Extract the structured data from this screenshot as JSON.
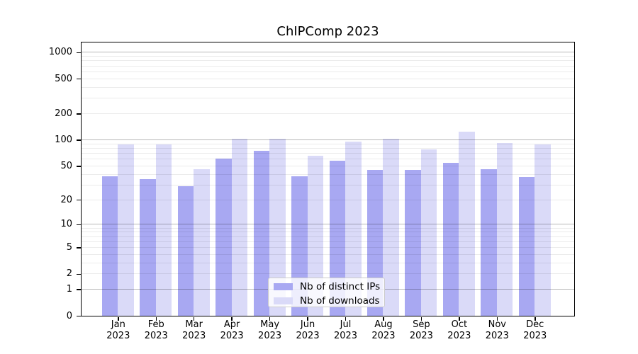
{
  "title": "ChIPComp 2023",
  "legend": {
    "items": [
      {
        "label": "Nb of distinct IPs",
        "color": "#a8a8f2"
      },
      {
        "label": "Nb of downloads",
        "color": "#dadaf8"
      }
    ]
  },
  "chart_data": {
    "type": "bar",
    "title": "ChIPComp 2023",
    "scale": "log1p (log-like axis with 0 baseline)",
    "categories": [
      "Jan 2023",
      "Feb 2023",
      "Mar 2023",
      "Apr 2023",
      "May 2023",
      "Jun 2023",
      "Jul 2023",
      "Aug 2023",
      "Sep 2023",
      "Oct 2023",
      "Nov 2023",
      "Dec 2023"
    ],
    "series": [
      {
        "name": "Nb of distinct IPs",
        "color": "#a8a8f2",
        "values": [
          38,
          35,
          29,
          61,
          75,
          38,
          57,
          45,
          45,
          54,
          46,
          37
        ]
      },
      {
        "name": "Nb of downloads",
        "color": "#dadaf8",
        "values": [
          89,
          88,
          46,
          103,
          103,
          66,
          96,
          102,
          77,
          123,
          92,
          88
        ]
      }
    ],
    "yticks": [
      0,
      1,
      2,
      5,
      10,
      20,
      50,
      100,
      200,
      500,
      1000
    ],
    "minor_gridlines": [
      2,
      3,
      4,
      5,
      6,
      7,
      8,
      9,
      20,
      30,
      40,
      50,
      60,
      70,
      80,
      90,
      200,
      300,
      400,
      500,
      600,
      700,
      800,
      900
    ],
    "major_gridlines": [
      1,
      10,
      100,
      1000
    ],
    "ylim": [
      0,
      1300
    ],
    "xlabel": "",
    "ylabel": "",
    "grid": "horizontal only, drawn over bars",
    "legend_position": "lower center"
  },
  "colors": {
    "distinct_ips": "#a8a8f2",
    "downloads": "#dadaf8",
    "background": "#ffffff",
    "frame": "#000000",
    "text": "#000000",
    "grid_major": "rgba(0,0,0,0.28)",
    "grid_minor": "rgba(0,0,0,0.08)",
    "legend_border": "#cccccc"
  }
}
